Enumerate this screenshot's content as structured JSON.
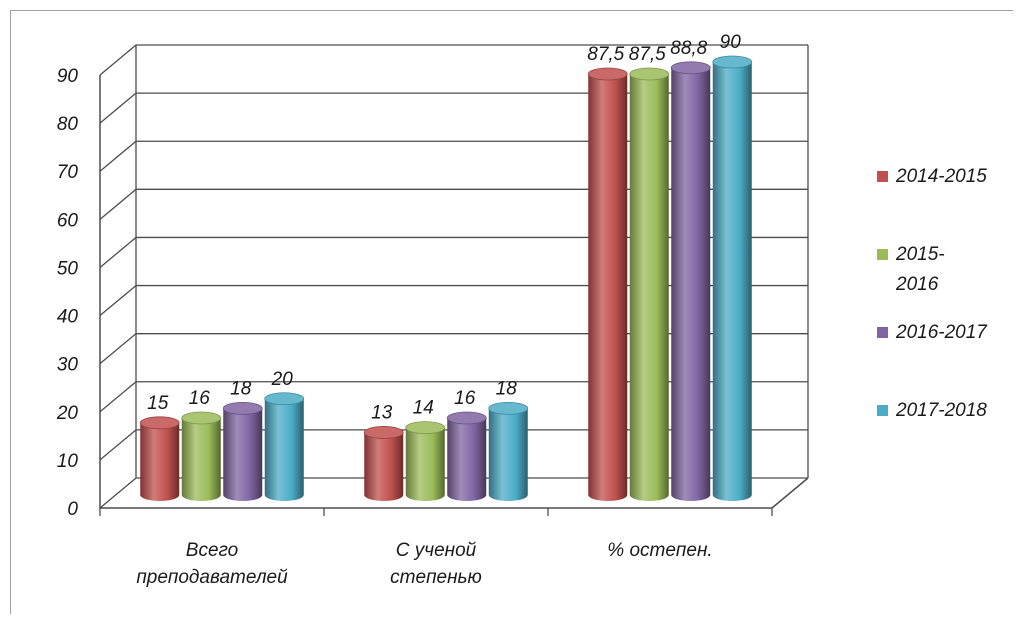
{
  "chart_data": {
    "type": "bar",
    "title": "",
    "xlabel": "",
    "ylabel": "",
    "categories": [
      [
        "Всего",
        "преподавателей"
      ],
      [
        "С ученой",
        "степенью"
      ],
      [
        "% остепен."
      ]
    ],
    "series": [
      {
        "name": [
          "2014-2015"
        ],
        "color": "#c0504d",
        "values": [
          15,
          13,
          87.5
        ],
        "labels": [
          "15",
          "13",
          "87,5"
        ]
      },
      {
        "name": [
          "2015-",
          "2016"
        ],
        "color": "#9bbb59",
        "values": [
          16,
          14,
          87.5
        ],
        "labels": [
          "16",
          "14",
          "87,5"
        ]
      },
      {
        "name": [
          "2016-2017"
        ],
        "color": "#8064a2",
        "values": [
          18,
          16,
          88.8
        ],
        "labels": [
          "18",
          "16",
          "88,8"
        ]
      },
      {
        "name": [
          "2017-2018"
        ],
        "color": "#4bacc6",
        "values": [
          20,
          18,
          90
        ],
        "labels": [
          "20",
          "18",
          "90"
        ]
      }
    ],
    "yticks": [
      "0",
      "10",
      "20",
      "30",
      "40",
      "50",
      "60",
      "70",
      "80",
      "90"
    ],
    "ylim": [
      0,
      90
    ],
    "grid": true,
    "legend": "right",
    "style": "3d-cylinder"
  }
}
